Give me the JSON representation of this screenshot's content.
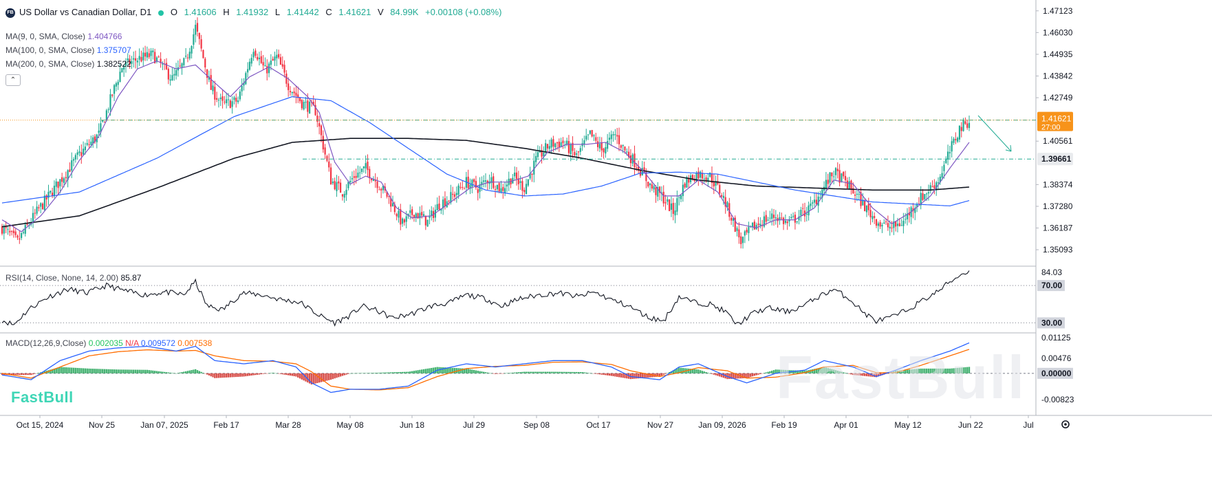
{
  "header": {
    "logo_text": "FB",
    "symbol": "US Dollar vs Canadian Dollar, D1",
    "ohlc": [
      {
        "label": "O",
        "value": "1.41606"
      },
      {
        "label": "H",
        "value": "1.41932"
      },
      {
        "label": "L",
        "value": "1.41442"
      },
      {
        "label": "C",
        "value": "1.41621"
      },
      {
        "label": "V",
        "value": "84.99K"
      }
    ],
    "change": "+0.00108 (+0.08%)"
  },
  "indicators": {
    "ma9": {
      "label": "MA(9, 0, SMA, Close)",
      "value": "1.404766"
    },
    "ma100": {
      "label": "MA(100, 0, SMA, Close)",
      "value": "1.375707"
    },
    "ma200": {
      "label": "MA(200, 0, SMA, Close)",
      "value": "1.382522"
    },
    "collapse_glyph": "⌃",
    "rsi": {
      "label": "RSI(14, Close, None, 14, 2.00)",
      "value": "85.87"
    },
    "macd": {
      "label": "MACD(12,26,9,Close)",
      "hist": "0.002035",
      "na": "N/A",
      "macd": "0.009572",
      "signal": "0.007538"
    }
  },
  "branding": {
    "small": "FastBull",
    "watermark": "FastBull"
  },
  "colors": {
    "up": "#22ab94",
    "down": "#f23645",
    "ma9": "#7e57c2",
    "ma100": "#2962ff",
    "ma200": "#131722",
    "price_tag": "#f7931a",
    "level": "#22ab94",
    "macd": "#2962ff",
    "signal": "#ff6d00"
  },
  "chart_data": {
    "type": "candlestick",
    "xaxis": {
      "labels": [
        "Oct 15, 2024",
        "Nov 25",
        "Jan 07, 2025",
        "Feb 17",
        "Mar 28",
        "May 08",
        "Jun 18",
        "Jul 29",
        "Sep 08",
        "Oct 17",
        "Nov 27",
        "Jan 09, 2026",
        "Feb 19",
        "Apr 01",
        "May 12",
        "Jun 22",
        "Jul"
      ]
    },
    "price": {
      "ylim": [
        1.343,
        1.476
      ],
      "ticks": [
        "1.47123",
        "1.46030",
        "1.44935",
        "1.43842",
        "1.42749",
        "1.40561",
        "1.38374",
        "1.37280",
        "1.36187",
        "1.35093"
      ],
      "last_price": "1.41621",
      "countdown": "27:00",
      "level_price": "1.39661",
      "upper_level": 1.4162,
      "path": [
        [
          0,
          1.362
        ],
        [
          8,
          1.355
        ],
        [
          18,
          1.37
        ],
        [
          28,
          1.383
        ],
        [
          40,
          1.399
        ],
        [
          50,
          1.409
        ],
        [
          58,
          1.432
        ],
        [
          62,
          1.443
        ],
        [
          70,
          1.447
        ],
        [
          78,
          1.449
        ],
        [
          88,
          1.437
        ],
        [
          95,
          1.446
        ],
        [
          100,
          1.463
        ],
        [
          108,
          1.432
        ],
        [
          114,
          1.424
        ],
        [
          122,
          1.426
        ],
        [
          130,
          1.453
        ],
        [
          136,
          1.441
        ],
        [
          142,
          1.448
        ],
        [
          148,
          1.434
        ],
        [
          155,
          1.425
        ],
        [
          162,
          1.421
        ],
        [
          170,
          1.386
        ],
        [
          176,
          1.38
        ],
        [
          182,
          1.388
        ],
        [
          188,
          1.392
        ],
        [
          193,
          1.386
        ],
        [
          200,
          1.377
        ],
        [
          207,
          1.364
        ],
        [
          213,
          1.37
        ],
        [
          220,
          1.365
        ],
        [
          226,
          1.374
        ],
        [
          233,
          1.378
        ],
        [
          240,
          1.385
        ],
        [
          246,
          1.382
        ],
        [
          252,
          1.387
        ],
        [
          258,
          1.381
        ],
        [
          264,
          1.388
        ],
        [
          270,
          1.382
        ],
        [
          276,
          1.396
        ],
        [
          283,
          1.404
        ],
        [
          290,
          1.405
        ],
        [
          297,
          1.398
        ],
        [
          304,
          1.409
        ],
        [
          310,
          1.401
        ],
        [
          317,
          1.409
        ],
        [
          322,
          1.401
        ],
        [
          328,
          1.394
        ],
        [
          336,
          1.382
        ],
        [
          341,
          1.378
        ],
        [
          347,
          1.37
        ],
        [
          353,
          1.385
        ],
        [
          359,
          1.389
        ],
        [
          366,
          1.388
        ],
        [
          372,
          1.379
        ],
        [
          378,
          1.365
        ],
        [
          382,
          1.355
        ],
        [
          388,
          1.362
        ],
        [
          394,
          1.366
        ],
        [
          400,
          1.368
        ],
        [
          406,
          1.364
        ],
        [
          412,
          1.368
        ],
        [
          418,
          1.372
        ],
        [
          424,
          1.381
        ],
        [
          430,
          1.39
        ],
        [
          436,
          1.385
        ],
        [
          442,
          1.378
        ],
        [
          448,
          1.37
        ],
        [
          454,
          1.364
        ],
        [
          460,
          1.362
        ],
        [
          466,
          1.365
        ],
        [
          472,
          1.374
        ],
        [
          478,
          1.38
        ],
        [
          484,
          1.386
        ],
        [
          489,
          1.398
        ],
        [
          495,
          1.412
        ],
        [
          500,
          1.416
        ]
      ],
      "ma9": [
        [
          0,
          1.366
        ],
        [
          10,
          1.36
        ],
        [
          20,
          1.368
        ],
        [
          30,
          1.38
        ],
        [
          40,
          1.396
        ],
        [
          50,
          1.408
        ],
        [
          60,
          1.428
        ],
        [
          70,
          1.442
        ],
        [
          80,
          1.446
        ],
        [
          90,
          1.442
        ],
        [
          100,
          1.444
        ],
        [
          110,
          1.435
        ],
        [
          118,
          1.428
        ],
        [
          128,
          1.438
        ],
        [
          138,
          1.443
        ],
        [
          148,
          1.437
        ],
        [
          158,
          1.428
        ],
        [
          164,
          1.42
        ],
        [
          172,
          1.395
        ],
        [
          180,
          1.384
        ],
        [
          188,
          1.388
        ],
        [
          196,
          1.385
        ],
        [
          204,
          1.372
        ],
        [
          212,
          1.367
        ],
        [
          222,
          1.368
        ],
        [
          232,
          1.375
        ],
        [
          242,
          1.382
        ],
        [
          252,
          1.385
        ],
        [
          262,
          1.385
        ],
        [
          272,
          1.388
        ],
        [
          282,
          1.4
        ],
        [
          292,
          1.404
        ],
        [
          302,
          1.404
        ],
        [
          312,
          1.405
        ],
        [
          322,
          1.4
        ],
        [
          332,
          1.39
        ],
        [
          342,
          1.378
        ],
        [
          350,
          1.378
        ],
        [
          360,
          1.386
        ],
        [
          370,
          1.38
        ],
        [
          380,
          1.364
        ],
        [
          390,
          1.362
        ],
        [
          400,
          1.366
        ],
        [
          410,
          1.366
        ],
        [
          420,
          1.372
        ],
        [
          430,
          1.386
        ],
        [
          440,
          1.384
        ],
        [
          450,
          1.372
        ],
        [
          460,
          1.364
        ],
        [
          470,
          1.37
        ],
        [
          480,
          1.378
        ],
        [
          490,
          1.392
        ],
        [
          500,
          1.405
        ]
      ],
      "ma100": [
        [
          0,
          1.3745
        ],
        [
          40,
          1.38
        ],
        [
          80,
          1.397
        ],
        [
          120,
          1.418
        ],
        [
          150,
          1.428
        ],
        [
          170,
          1.426
        ],
        [
          190,
          1.415
        ],
        [
          210,
          1.402
        ],
        [
          230,
          1.389
        ],
        [
          250,
          1.381
        ],
        [
          270,
          1.378
        ],
        [
          290,
          1.379
        ],
        [
          310,
          1.383
        ],
        [
          330,
          1.3895
        ],
        [
          350,
          1.39
        ],
        [
          370,
          1.389
        ],
        [
          390,
          1.385
        ],
        [
          410,
          1.381
        ],
        [
          430,
          1.378
        ],
        [
          450,
          1.375
        ],
        [
          470,
          1.374
        ],
        [
          490,
          1.373
        ],
        [
          500,
          1.3757
        ]
      ],
      "ma200": [
        [
          0,
          1.3625
        ],
        [
          40,
          1.368
        ],
        [
          80,
          1.382
        ],
        [
          120,
          1.397
        ],
        [
          150,
          1.405
        ],
        [
          180,
          1.407
        ],
        [
          210,
          1.407
        ],
        [
          240,
          1.406
        ],
        [
          270,
          1.402
        ],
        [
          300,
          1.397
        ],
        [
          330,
          1.391
        ],
        [
          360,
          1.386
        ],
        [
          390,
          1.383
        ],
        [
          420,
          1.382
        ],
        [
          450,
          1.381
        ],
        [
          480,
          1.381
        ],
        [
          500,
          1.3825
        ]
      ]
    },
    "rsi": {
      "ylim": [
        20,
        90
      ],
      "ticks": [
        "84.03",
        "70.00",
        "30.00"
      ],
      "overbought": 70,
      "oversold": 30,
      "path": [
        [
          0,
          33
        ],
        [
          6,
          28
        ],
        [
          14,
          45
        ],
        [
          24,
          58
        ],
        [
          34,
          66
        ],
        [
          44,
          62
        ],
        [
          54,
          70
        ],
        [
          64,
          64
        ],
        [
          74,
          60
        ],
        [
          84,
          63
        ],
        [
          94,
          60
        ],
        [
          100,
          74
        ],
        [
          106,
          48
        ],
        [
          114,
          44
        ],
        [
          124,
          62
        ],
        [
          134,
          60
        ],
        [
          144,
          55
        ],
        [
          154,
          52
        ],
        [
          164,
          38
        ],
        [
          172,
          30
        ],
        [
          180,
          38
        ],
        [
          186,
          48
        ],
        [
          194,
          43
        ],
        [
          202,
          35
        ],
        [
          212,
          40
        ],
        [
          222,
          48
        ],
        [
          232,
          52
        ],
        [
          240,
          60
        ],
        [
          250,
          56
        ],
        [
          258,
          48
        ],
        [
          268,
          56
        ],
        [
          278,
          60
        ],
        [
          288,
          62
        ],
        [
          298,
          58
        ],
        [
          306,
          63
        ],
        [
          316,
          54
        ],
        [
          324,
          48
        ],
        [
          334,
          36
        ],
        [
          342,
          32
        ],
        [
          350,
          58
        ],
        [
          358,
          52
        ],
        [
          366,
          50
        ],
        [
          374,
          42
        ],
        [
          380,
          28
        ],
        [
          388,
          40
        ],
        [
          396,
          46
        ],
        [
          406,
          42
        ],
        [
          414,
          48
        ],
        [
          422,
          58
        ],
        [
          430,
          66
        ],
        [
          438,
          56
        ],
        [
          446,
          40
        ],
        [
          452,
          32
        ],
        [
          460,
          36
        ],
        [
          468,
          44
        ],
        [
          476,
          54
        ],
        [
          484,
          64
        ],
        [
          490,
          74
        ],
        [
          496,
          82
        ],
        [
          500,
          85.87
        ]
      ]
    },
    "macd": {
      "ylim": [
        -0.013,
        0.0125
      ],
      "ticks": [
        "0.01125",
        "0.00476",
        "0.00000",
        "-0.00823"
      ],
      "macd_path": [
        [
          0,
          -0.0005
        ],
        [
          15,
          -0.002
        ],
        [
          30,
          0.004
        ],
        [
          45,
          0.007
        ],
        [
          60,
          0.008
        ],
        [
          75,
          0.0085
        ],
        [
          90,
          0.007
        ],
        [
          100,
          0.0085
        ],
        [
          110,
          0.004
        ],
        [
          125,
          0.003
        ],
        [
          140,
          0.004
        ],
        [
          152,
          0.002
        ],
        [
          160,
          -0.003
        ],
        [
          170,
          -0.006
        ],
        [
          180,
          -0.005
        ],
        [
          195,
          -0.005
        ],
        [
          210,
          -0.004
        ],
        [
          225,
          0.001
        ],
        [
          240,
          0.003
        ],
        [
          255,
          0.002
        ],
        [
          270,
          0.003
        ],
        [
          285,
          0.004
        ],
        [
          300,
          0.004
        ],
        [
          315,
          0.002
        ],
        [
          325,
          -0.001
        ],
        [
          340,
          -0.002
        ],
        [
          350,
          0.002
        ],
        [
          360,
          0.003
        ],
        [
          375,
          -0.001
        ],
        [
          385,
          -0.003
        ],
        [
          400,
          0.0
        ],
        [
          415,
          0.001
        ],
        [
          425,
          0.004
        ],
        [
          440,
          0.002
        ],
        [
          452,
          -0.001
        ],
        [
          462,
          0.001
        ],
        [
          475,
          0.004
        ],
        [
          490,
          0.007
        ],
        [
          500,
          0.009572
        ]
      ],
      "signal_path": [
        [
          0,
          0.0
        ],
        [
          15,
          -0.0015
        ],
        [
          30,
          0.002
        ],
        [
          45,
          0.0055
        ],
        [
          60,
          0.0068
        ],
        [
          75,
          0.0074
        ],
        [
          90,
          0.007
        ],
        [
          100,
          0.0072
        ],
        [
          110,
          0.0055
        ],
        [
          125,
          0.004
        ],
        [
          140,
          0.0038
        ],
        [
          152,
          0.003
        ],
        [
          160,
          0.0005
        ],
        [
          170,
          -0.004
        ],
        [
          180,
          -0.005
        ],
        [
          195,
          -0.0052
        ],
        [
          210,
          -0.0045
        ],
        [
          225,
          -0.001
        ],
        [
          240,
          0.0015
        ],
        [
          255,
          0.0022
        ],
        [
          270,
          0.0025
        ],
        [
          285,
          0.0035
        ],
        [
          300,
          0.0036
        ],
        [
          315,
          0.0028
        ],
        [
          325,
          0.0008
        ],
        [
          340,
          -0.001
        ],
        [
          350,
          0.0002
        ],
        [
          360,
          0.0018
        ],
        [
          375,
          0.0008
        ],
        [
          385,
          -0.0015
        ],
        [
          400,
          -0.0012
        ],
        [
          415,
          0.0002
        ],
        [
          425,
          0.002
        ],
        [
          440,
          0.0025
        ],
        [
          452,
          0.0002
        ],
        [
          462,
          0.0002
        ],
        [
          475,
          0.0025
        ],
        [
          490,
          0.0055
        ],
        [
          500,
          0.007538
        ]
      ]
    }
  }
}
